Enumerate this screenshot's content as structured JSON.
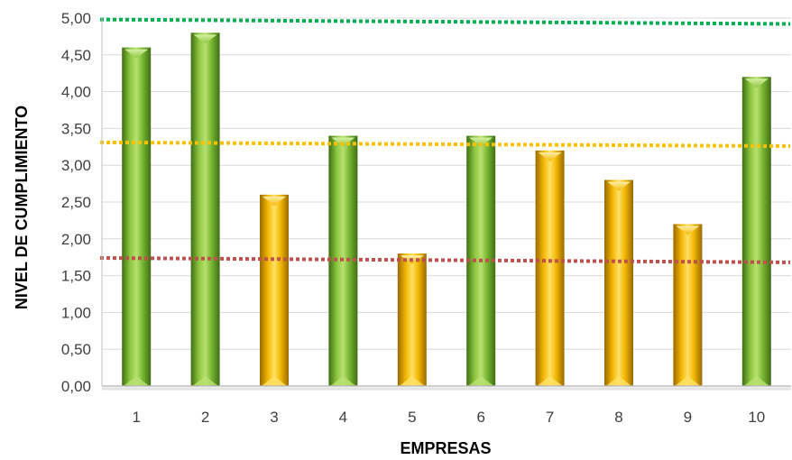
{
  "chart_data": {
    "type": "bar",
    "xlabel": "EMPRESAS",
    "ylabel": "NIVEL DE CUMPLIMIENTO",
    "categories": [
      "1",
      "2",
      "3",
      "4",
      "5",
      "6",
      "7",
      "8",
      "9",
      "10"
    ],
    "values": [
      4.6,
      4.8,
      2.6,
      3.4,
      1.8,
      3.4,
      3.2,
      2.8,
      2.2,
      4.2
    ],
    "bar_colors": [
      "green",
      "green",
      "yellow",
      "green",
      "yellow",
      "green",
      "yellow",
      "yellow",
      "yellow",
      "green"
    ],
    "ylim": [
      0,
      5
    ],
    "y_ticks": [
      "0,00",
      "0,50",
      "1,00",
      "1,50",
      "2,00",
      "2,50",
      "3,00",
      "3,50",
      "4,00",
      "4,50",
      "5,00"
    ],
    "grid": true,
    "reference_lines": [
      {
        "color": "#00b050",
        "start": 4.98,
        "end": 4.92
      },
      {
        "color": "#ffc000",
        "start": 3.31,
        "end": 3.26
      },
      {
        "color": "#c0504d",
        "start": 1.74,
        "end": 1.68
      }
    ],
    "colors": {
      "green_light": "#b9e070",
      "green_mid": "#76b531",
      "green_dark": "#3f6e14",
      "yellow_light": "#ffe066",
      "yellow_mid": "#f2b600",
      "yellow_dark": "#9a6a00",
      "gridline": "#d9d9d9",
      "axis": "#bfbfbf"
    }
  }
}
